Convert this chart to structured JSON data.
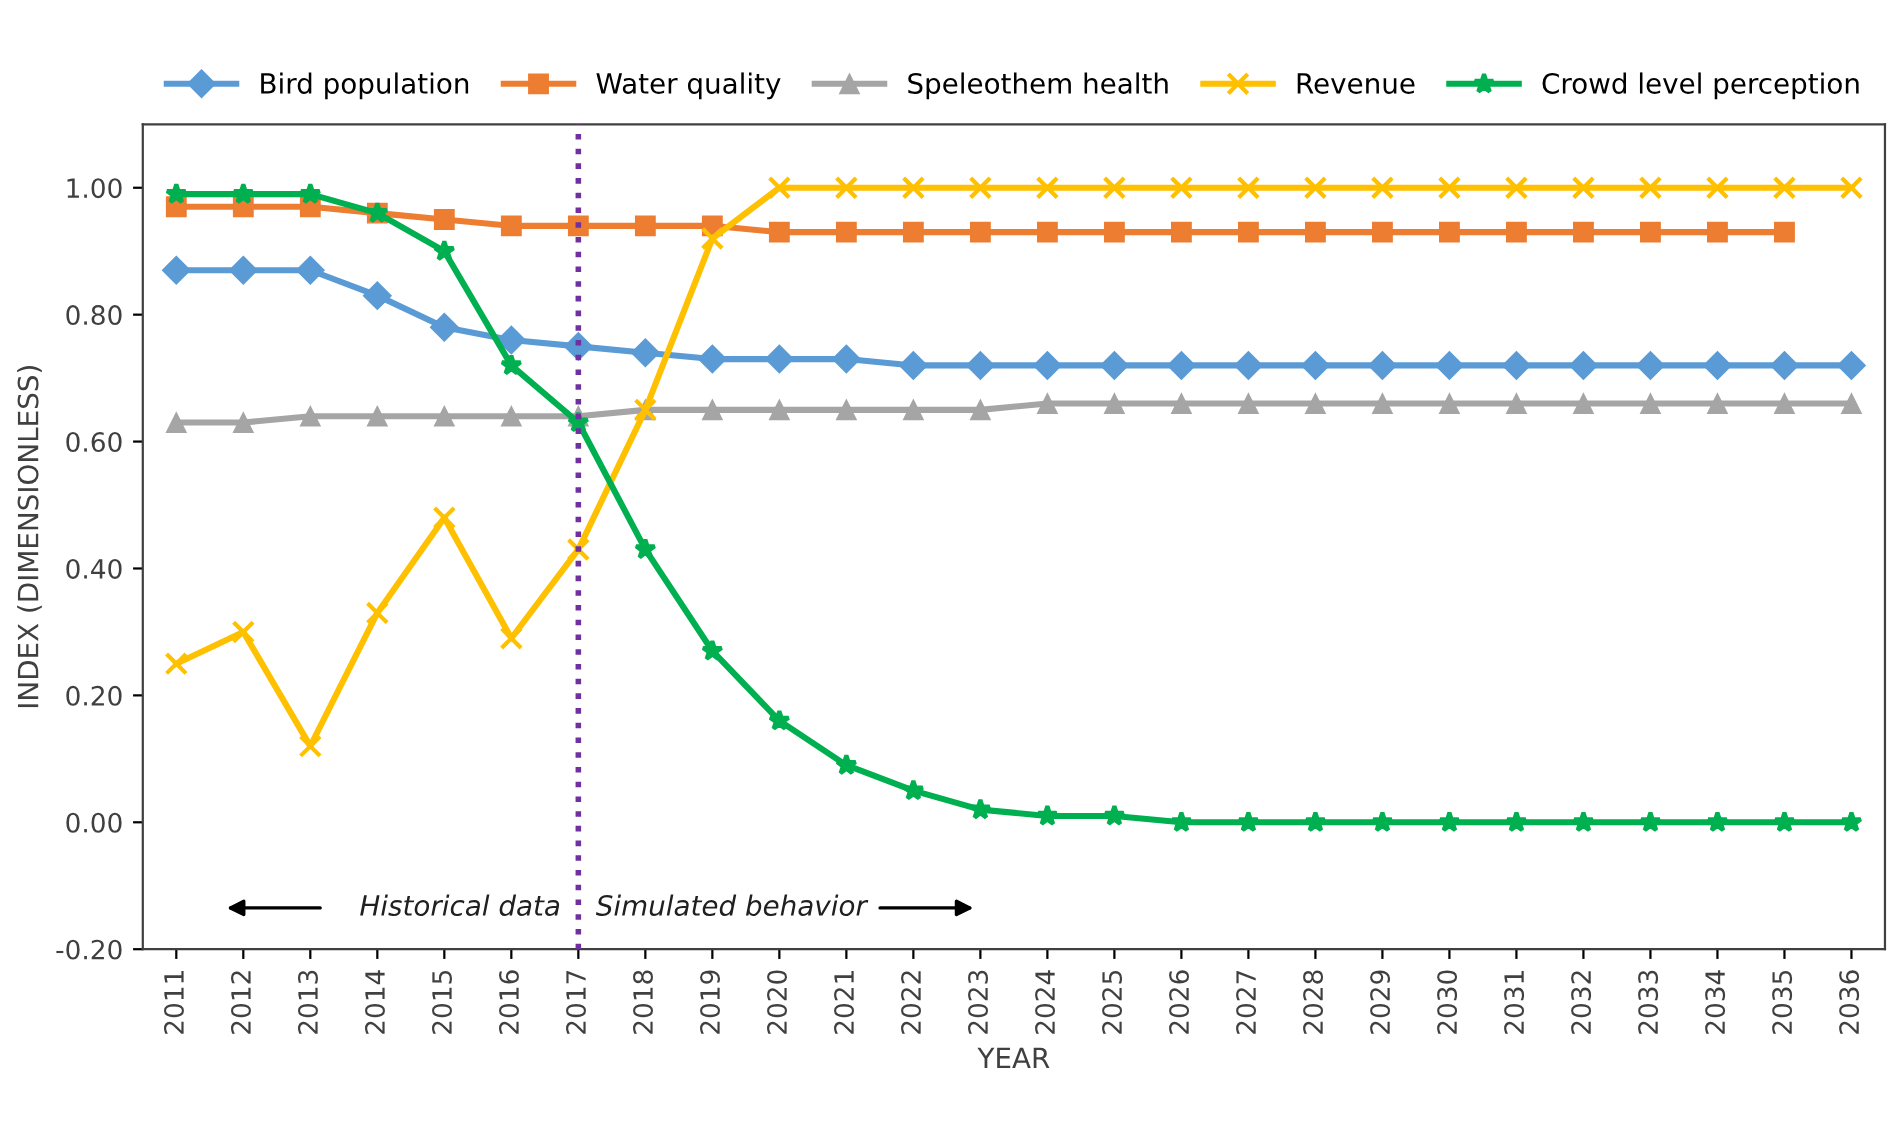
{
  "chart_data": {
    "type": "line",
    "xlabel": "YEAR",
    "ylabel": "INDEX (DIMENSIONLESS)",
    "categories": [
      "2011",
      "2012",
      "2013",
      "2014",
      "2015",
      "2016",
      "2017",
      "2018",
      "2019",
      "2020",
      "2021",
      "2022",
      "2023",
      "2024",
      "2025",
      "2026",
      "2027",
      "2028",
      "2029",
      "2030",
      "2031",
      "2032",
      "2033",
      "2034",
      "2035",
      "2036"
    ],
    "series": [
      {
        "name": "Bird population",
        "color": "#5b9bd5",
        "marker": "diamond",
        "values": [
          0.87,
          0.87,
          0.87,
          0.83,
          0.78,
          0.76,
          0.75,
          0.74,
          0.73,
          0.73,
          0.73,
          0.72,
          0.72,
          0.72,
          0.72,
          0.72,
          0.72,
          0.72,
          0.72,
          0.72,
          0.72,
          0.72,
          0.72,
          0.72,
          0.72,
          0.72
        ]
      },
      {
        "name": "Water quality",
        "color": "#ed7d31",
        "marker": "square",
        "values": [
          0.97,
          0.97,
          0.97,
          0.96,
          0.95,
          0.94,
          0.94,
          0.94,
          0.94,
          0.93,
          0.93,
          0.93,
          0.93,
          0.93,
          0.93,
          0.93,
          0.93,
          0.93,
          0.93,
          0.93,
          0.93,
          0.93,
          0.93,
          0.93,
          0.93,
          null
        ]
      },
      {
        "name": "Speleothem health",
        "color": "#a5a5a5",
        "marker": "triangle",
        "values": [
          0.63,
          0.63,
          0.64,
          0.64,
          0.64,
          0.64,
          0.64,
          0.65,
          0.65,
          0.65,
          0.65,
          0.65,
          0.65,
          0.66,
          0.66,
          0.66,
          0.66,
          0.66,
          0.66,
          0.66,
          0.66,
          0.66,
          0.66,
          0.66,
          0.66,
          0.66
        ]
      },
      {
        "name": "Revenue",
        "color": "#ffc000",
        "marker": "cross",
        "values": [
          0.25,
          0.3,
          0.12,
          0.33,
          0.48,
          0.29,
          0.43,
          0.65,
          0.92,
          1.0,
          1.0,
          1.0,
          1.0,
          1.0,
          1.0,
          1.0,
          1.0,
          1.0,
          1.0,
          1.0,
          1.0,
          1.0,
          1.0,
          1.0,
          1.0,
          1.0
        ]
      },
      {
        "name": "Crowd level perception",
        "color": "#00b050",
        "marker": "star",
        "values": [
          0.99,
          0.99,
          0.99,
          0.96,
          0.9,
          0.72,
          0.63,
          0.43,
          0.27,
          0.16,
          0.09,
          0.05,
          0.02,
          0.01,
          0.01,
          0.0,
          0.0,
          0.0,
          0.0,
          0.0,
          0.0,
          0.0,
          0.0,
          0.0,
          0.0,
          0.0
        ]
      }
    ],
    "ylim": [
      -0.2,
      1.1
    ],
    "yticks": [
      {
        "value": -0.2,
        "label": "-0.20"
      },
      {
        "value": 0,
        "label": "0.00"
      },
      {
        "value": 0.2,
        "label": "0.20"
      },
      {
        "value": 0.4,
        "label": "0.40"
      },
      {
        "value": 0.6,
        "label": "0.60"
      },
      {
        "value": 0.8,
        "label": "0.80"
      },
      {
        "value": 1.0,
        "label": "1.00"
      }
    ],
    "ref_lines": [
      {
        "axis": "x",
        "value": "2017",
        "color": "#7030a0",
        "line_style": "dotted"
      }
    ],
    "annotations": [
      "Historical data",
      "Simulated behavior"
    ],
    "legend": "top",
    "grid": false,
    "line_style": "solid"
  }
}
